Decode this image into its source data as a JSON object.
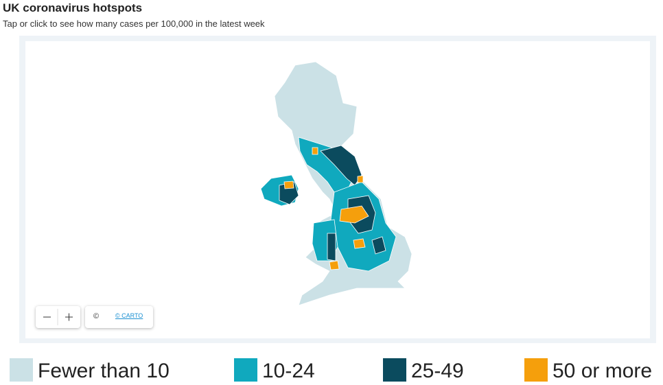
{
  "header": {
    "title": "UK coronavirus hotspots",
    "subtitle": "Tap or click to see how many cases per 100,000 in the latest week"
  },
  "map": {
    "attribution": {
      "copyright": "©",
      "carto": "© CARTO"
    }
  },
  "legend": [
    {
      "label": "Fewer than 10",
      "color": "#cbe1e6"
    },
    {
      "label": "10-24",
      "color": "#10a9be"
    },
    {
      "label": "25-49",
      "color": "#0b4b5e"
    },
    {
      "label": "50 or more",
      "color": "#f59f0c"
    }
  ]
}
